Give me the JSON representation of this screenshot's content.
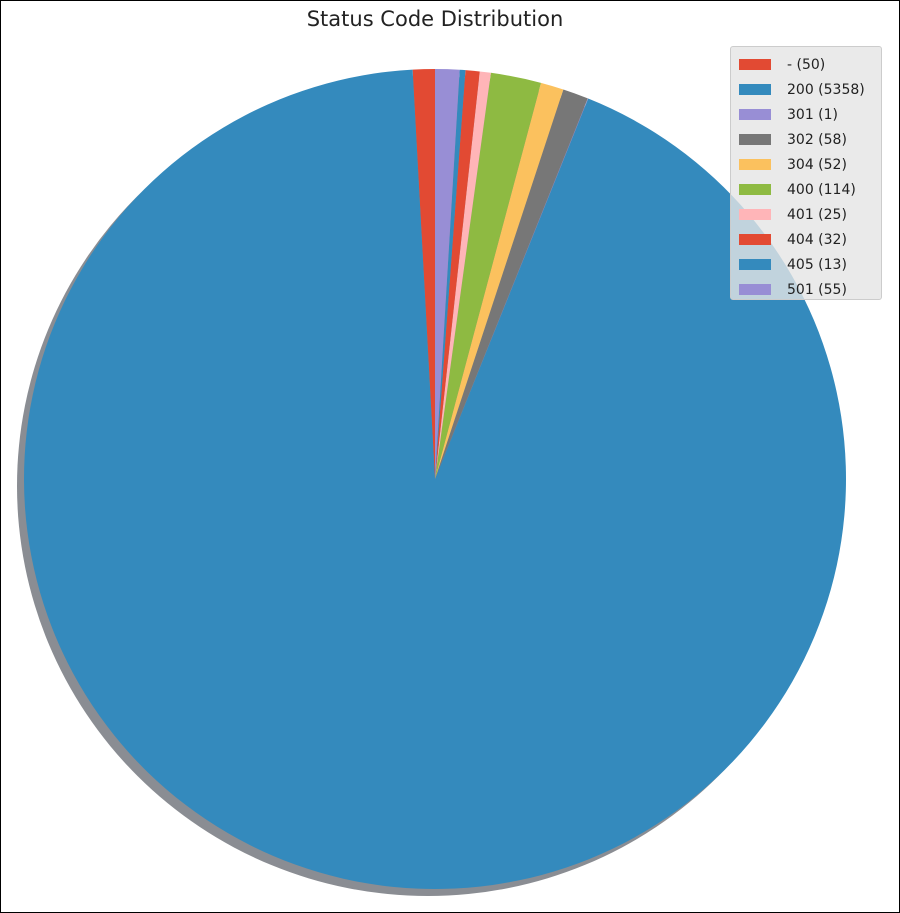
{
  "chart_data": {
    "type": "pie",
    "title": "Status Code Distribution",
    "legend_position": "top-right",
    "shadow": true,
    "start": "top",
    "direction": "counterclockwise",
    "slices": [
      {
        "label": "- (50)",
        "value": 50,
        "color": "#E24A33"
      },
      {
        "label": "200 (5358)",
        "value": 5358,
        "color": "#348ABD"
      },
      {
        "label": "301 (1)",
        "value": 1,
        "color": "#988ED5"
      },
      {
        "label": "302 (58)",
        "value": 58,
        "color": "#777777"
      },
      {
        "label": "304 (52)",
        "value": 52,
        "color": "#FBC15E"
      },
      {
        "label": "400 (114)",
        "value": 114,
        "color": "#8EBA42"
      },
      {
        "label": "401 (25)",
        "value": 25,
        "color": "#FFB5B8"
      },
      {
        "label": "404 (32)",
        "value": 32,
        "color": "#E24A33"
      },
      {
        "label": "405 (13)",
        "value": 13,
        "color": "#348ABD"
      },
      {
        "label": "501 (55)",
        "value": 55,
        "color": "#988ED5"
      }
    ]
  }
}
